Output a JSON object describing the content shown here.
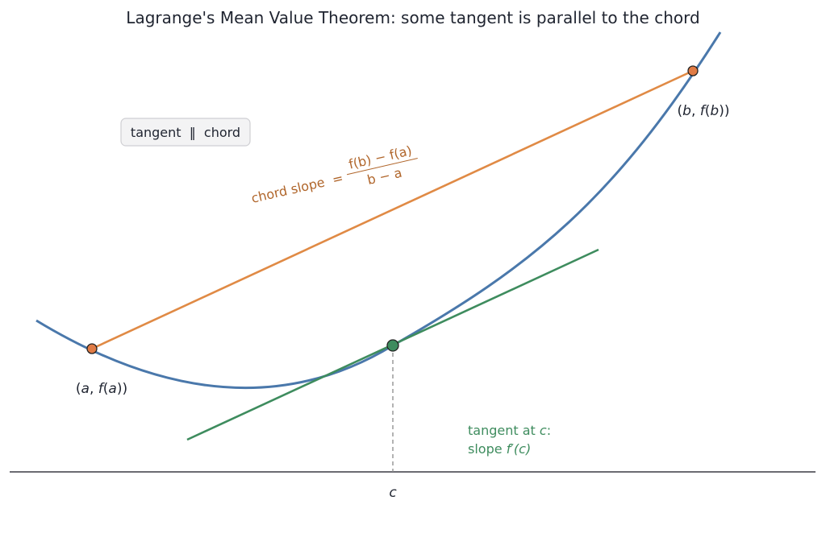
{
  "title": "Lagrange's Mean Value Theorem: some tangent is parallel to the chord",
  "badge": "tangent  ‖  chord",
  "point_a_label": {
    "pre": "(",
    "a": "a",
    "mid1": ", ",
    "f": "f",
    "mid2": "(",
    "a2": "a",
    "post": "))"
  },
  "point_b_label": {
    "pre": "(",
    "b": "b",
    "mid1": ", ",
    "f": "f",
    "mid2": "(",
    "b2": "b",
    "post": "))"
  },
  "c_label": "c",
  "chord_label": {
    "text": "chord slope  =",
    "num": "f(b) − f(a)",
    "den": "b − a"
  },
  "tangent_label": {
    "line1_pre": "tangent at ",
    "line1_var": "c",
    "line1_post": ":",
    "line2_pre": "slope ",
    "line2_var": "f′(c)"
  },
  "colors": {
    "curve": "#4a78ab",
    "chord": "#e08a45",
    "tangent": "#3e8c5e",
    "axis": "#3a3a44",
    "guide": "#8a8a8a",
    "point_a_b": "#e07b45",
    "point_c": "#3e8c5e",
    "chord_text": "#b0652a"
  }
}
